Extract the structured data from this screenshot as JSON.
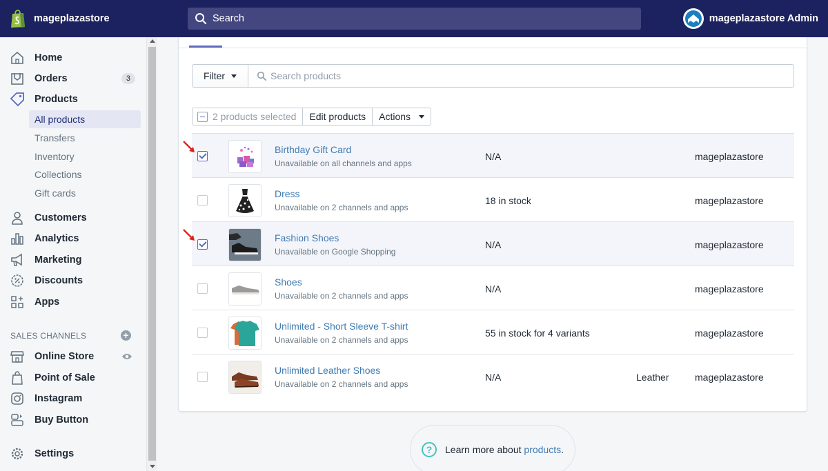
{
  "header": {
    "store_name": "mageplazastore",
    "search_placeholder": "Search",
    "account_name": "mageplazastore Admin"
  },
  "sidebar": {
    "items": [
      {
        "id": "home",
        "label": "Home",
        "icon": "home-icon"
      },
      {
        "id": "orders",
        "label": "Orders",
        "icon": "orders-icon",
        "badge": "3"
      },
      {
        "id": "products",
        "label": "Products",
        "icon": "tag-icon"
      },
      {
        "id": "customers",
        "label": "Customers",
        "icon": "person-icon"
      },
      {
        "id": "analytics",
        "label": "Analytics",
        "icon": "bar-chart-icon"
      },
      {
        "id": "marketing",
        "label": "Marketing",
        "icon": "megaphone-icon"
      },
      {
        "id": "discounts",
        "label": "Discounts",
        "icon": "discount-icon"
      },
      {
        "id": "apps",
        "label": "Apps",
        "icon": "apps-icon"
      }
    ],
    "product_sub_items": [
      "All products",
      "Transfers",
      "Inventory",
      "Collections",
      "Gift cards"
    ],
    "active_sub_item": "All products",
    "sales_channels_label": "SALES CHANNELS",
    "channels": [
      {
        "id": "online-store",
        "label": "Online Store",
        "icon": "store-icon"
      },
      {
        "id": "point-of-sale",
        "label": "Point of Sale",
        "icon": "pos-icon"
      },
      {
        "id": "instagram",
        "label": "Instagram",
        "icon": "instagram-icon"
      },
      {
        "id": "buy-button",
        "label": "Buy Button",
        "icon": "buy-button-icon"
      }
    ],
    "settings_label": "Settings"
  },
  "toolbar": {
    "filter_label": "Filter",
    "search_placeholder": "Search products",
    "selected_label": "2 products selected",
    "edit_label": "Edit products",
    "actions_label": "Actions"
  },
  "products": [
    {
      "name": "Birthday Gift Card",
      "availability": "Unavailable on all channels and apps",
      "inventory": "N/A",
      "type": "",
      "vendor": "mageplazastore",
      "selected": true,
      "thumb": "gift-card"
    },
    {
      "name": "Dress",
      "availability": "Unavailable on 2 channels and apps",
      "inventory": "18 in stock",
      "type": "",
      "vendor": "mageplazastore",
      "selected": false,
      "thumb": "dress"
    },
    {
      "name": "Fashion Shoes",
      "availability": "Unavailable on Google Shopping",
      "inventory": "N/A",
      "type": "",
      "vendor": "mageplazastore",
      "selected": true,
      "thumb": "sneakers"
    },
    {
      "name": "Shoes",
      "availability": "Unavailable on 2 channels and apps",
      "inventory": "N/A",
      "type": "",
      "vendor": "mageplazastore",
      "selected": false,
      "thumb": "grey-shoe"
    },
    {
      "name": "Unlimited - Short Sleeve T-shirt",
      "availability": "Unavailable on 2 channels and apps",
      "inventory": "55 in stock for 4 variants",
      "type": "",
      "vendor": "mageplazastore",
      "selected": false,
      "thumb": "tshirt"
    },
    {
      "name": "Unlimited Leather Shoes",
      "availability": "Unavailable on 2 channels and apps",
      "inventory": "N/A",
      "type": "Leather",
      "vendor": "mageplazastore",
      "selected": false,
      "thumb": "leather-shoes"
    }
  ],
  "footer": {
    "help_prefix": "Learn more about ",
    "help_link": "products",
    "help_suffix": "."
  },
  "colors": {
    "topbar": "#1c2260",
    "accent": "#5c6ac4",
    "link": "#3f7bb3",
    "annotation_arrow": "#e0201b"
  }
}
